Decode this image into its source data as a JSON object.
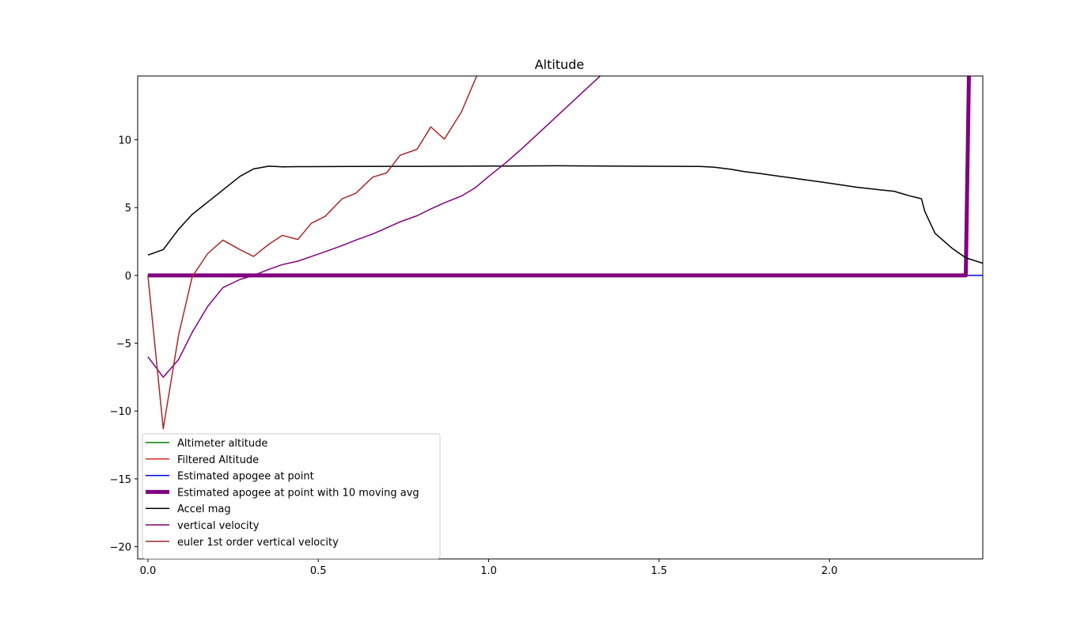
{
  "chart_data": {
    "type": "line",
    "title": "Altitude",
    "xlabel": "",
    "ylabel": "",
    "xlim": [
      -0.03,
      2.45
    ],
    "ylim": [
      -20.9,
      14.7
    ],
    "xticks": [
      0.0,
      0.5,
      1.0,
      1.5,
      2.0
    ],
    "xtick_labels": [
      "0.0",
      "0.5",
      "1.0",
      "1.5",
      "2.0"
    ],
    "yticks": [
      10,
      5,
      0,
      -5,
      -10,
      -15,
      -20
    ],
    "ytick_labels": [
      "10",
      "5",
      "0",
      "−5",
      "−10",
      "−15",
      "−20"
    ],
    "grid": false,
    "legend_position": "lower-left",
    "series": [
      {
        "name": "Altimeter altitude",
        "color": "#008000",
        "linewidth": 1.5,
        "x": [],
        "y": []
      },
      {
        "name": "Filtered Altitude",
        "color": "#d62728",
        "linewidth": 1.5,
        "x": [],
        "y": []
      },
      {
        "name": "Estimated apogee at point",
        "color": "#0000ff",
        "linewidth": 1.5,
        "x": [
          0.0,
          2.45
        ],
        "y": [
          0,
          0
        ]
      },
      {
        "name": "Estimated apogee at point with 10 moving avg",
        "color": "#800080",
        "linewidth": 5,
        "x": [
          0.0,
          2.4,
          2.41
        ],
        "y": [
          0,
          0,
          16
        ]
      },
      {
        "name": "Accel mag",
        "color": "#000000",
        "linewidth": 1.5,
        "x": [
          0.0,
          0.045,
          0.09,
          0.13,
          0.175,
          0.22,
          0.27,
          0.31,
          0.355,
          0.395,
          0.44,
          0.48,
          0.6,
          0.8,
          1.0,
          1.2,
          1.4,
          1.62,
          1.66,
          1.71,
          1.75,
          1.8,
          1.84,
          1.9,
          2.0,
          2.08,
          2.15,
          2.19,
          2.23,
          2.27,
          2.28,
          2.31,
          2.36,
          2.4,
          2.45
        ],
        "y": [
          1.5,
          1.9,
          3.4,
          4.5,
          5.4,
          6.3,
          7.3,
          7.85,
          8.05,
          8.0,
          8.02,
          8.02,
          8.03,
          8.04,
          8.06,
          8.08,
          8.05,
          8.03,
          7.98,
          7.83,
          7.65,
          7.5,
          7.35,
          7.15,
          6.8,
          6.5,
          6.3,
          6.2,
          5.9,
          5.65,
          4.7,
          3.1,
          2.0,
          1.3,
          0.9
        ]
      },
      {
        "name": "vertical velocity",
        "color": "#800080",
        "linewidth": 1.5,
        "x": [
          0.0,
          0.045,
          0.09,
          0.13,
          0.175,
          0.22,
          0.27,
          0.31,
          0.355,
          0.395,
          0.44,
          0.48,
          0.52,
          0.57,
          0.61,
          0.66,
          0.7,
          0.74,
          0.79,
          0.83,
          0.87,
          0.92,
          0.96,
          1.0,
          1.05,
          1.1,
          1.16,
          1.22,
          1.28,
          1.34
        ],
        "y": [
          -6.0,
          -7.5,
          -6.2,
          -4.2,
          -2.3,
          -0.9,
          -0.3,
          0.0,
          0.45,
          0.8,
          1.05,
          1.4,
          1.75,
          2.2,
          2.6,
          3.05,
          3.5,
          3.95,
          4.4,
          4.9,
          5.35,
          5.85,
          6.45,
          7.3,
          8.3,
          9.4,
          10.8,
          12.2,
          13.6,
          15.0
        ]
      },
      {
        "name": "euler 1st order vertical velocity",
        "color": "#a52a2a",
        "linewidth": 1.5,
        "x": [
          0.0,
          0.045,
          0.09,
          0.13,
          0.175,
          0.22,
          0.27,
          0.31,
          0.355,
          0.395,
          0.44,
          0.48,
          0.52,
          0.57,
          0.61,
          0.66,
          0.7,
          0.74,
          0.79,
          0.83,
          0.87,
          0.92,
          0.97
        ],
        "y": [
          0.0,
          -11.3,
          -4.4,
          -0.1,
          1.6,
          2.6,
          1.9,
          1.4,
          2.3,
          2.95,
          2.65,
          3.85,
          4.35,
          5.65,
          6.05,
          7.25,
          7.55,
          8.85,
          9.3,
          10.95,
          10.05,
          12.05,
          15.0
        ]
      }
    ]
  }
}
